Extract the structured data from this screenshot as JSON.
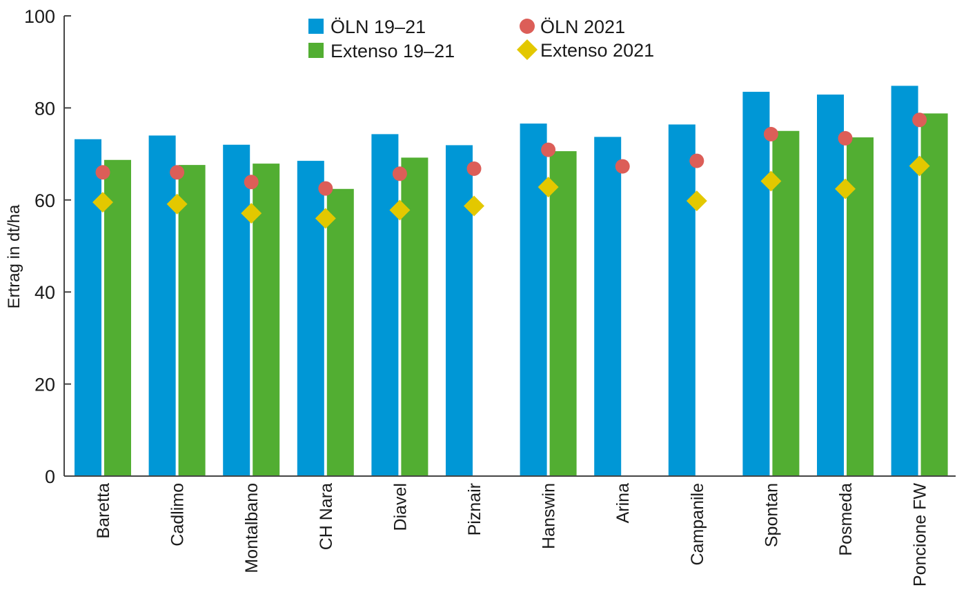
{
  "chart_data": {
    "type": "bar",
    "title": "",
    "xlabel": "",
    "ylabel": "Ertrag in dt/ha",
    "ylim": [
      0,
      100
    ],
    "yticks": [
      0,
      20,
      40,
      60,
      80,
      100
    ],
    "grid": false,
    "legend_position": "top-center",
    "categories": [
      "Baretta",
      "Cadlimo",
      "Montalbano",
      "CH Nara",
      "Diavel",
      "Piznair",
      "Hanswin",
      "Arina",
      "Campanile",
      "Spontan",
      "Posmeda",
      "Poncione FW"
    ],
    "series": [
      {
        "name": "ÖLN 19–21",
        "kind": "bar",
        "color": "#0097d6",
        "values": [
          73.2,
          74.0,
          72.0,
          68.5,
          74.3,
          71.9,
          76.6,
          73.7,
          76.4,
          83.5,
          82.9,
          84.8
        ]
      },
      {
        "name": "Extenso 19–21",
        "kind": "bar",
        "color": "#52ae32",
        "values": [
          68.7,
          67.6,
          67.9,
          62.4,
          69.2,
          null,
          70.6,
          null,
          null,
          75.0,
          73.6,
          78.8
        ]
      },
      {
        "name": "ÖLN 2021",
        "kind": "circle",
        "color": "#dc5e58",
        "values": [
          66.0,
          66.0,
          63.9,
          62.5,
          65.7,
          66.8,
          70.9,
          67.3,
          68.5,
          74.3,
          73.4,
          77.4
        ]
      },
      {
        "name": "Extenso 2021",
        "kind": "diamond",
        "color": "#e3c800",
        "values": [
          59.5,
          59.1,
          57.1,
          56.0,
          57.8,
          58.7,
          62.8,
          null,
          59.8,
          64.1,
          62.4,
          67.4
        ]
      }
    ]
  }
}
